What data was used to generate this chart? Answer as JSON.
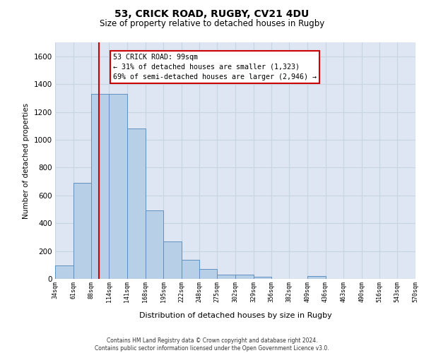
{
  "title_line1": "53, CRICK ROAD, RUGBY, CV21 4DU",
  "title_line2": "Size of property relative to detached houses in Rugby",
  "xlabel": "Distribution of detached houses by size in Rugby",
  "ylabel": "Number of detached properties",
  "annotation_line1": "53 CRICK ROAD: 99sqm",
  "annotation_line2": "← 31% of detached houses are smaller (1,323)",
  "annotation_line3": "69% of semi-detached houses are larger (2,946) →",
  "footer": "Contains HM Land Registry data © Crown copyright and database right 2024.\nContains public sector information licensed under the Open Government Licence v3.0.",
  "bar_color": "#b8cfe8",
  "bar_edge_color": "#6090c0",
  "property_line_color": "#cc0000",
  "property_line_x": 99,
  "bins": [
    34,
    61,
    88,
    114,
    141,
    168,
    195,
    222,
    248,
    275,
    302,
    329,
    356,
    382,
    409,
    436,
    463,
    490,
    516,
    543,
    570
  ],
  "bin_labels": [
    "34sqm",
    "61sqm",
    "88sqm",
    "114sqm",
    "141sqm",
    "168sqm",
    "195sqm",
    "222sqm",
    "248sqm",
    "275sqm",
    "302sqm",
    "329sqm",
    "356sqm",
    "382sqm",
    "409sqm",
    "436sqm",
    "463sqm",
    "490sqm",
    "516sqm",
    "543sqm",
    "570sqm"
  ],
  "counts": [
    95,
    690,
    1330,
    1330,
    1080,
    490,
    270,
    135,
    70,
    30,
    30,
    15,
    0,
    0,
    20,
    0,
    0,
    0,
    0,
    0
  ],
  "ylim": [
    0,
    1700
  ],
  "yticks": [
    0,
    200,
    400,
    600,
    800,
    1000,
    1200,
    1400,
    1600
  ],
  "annotation_box_facecolor": "#ffffff",
  "annotation_box_edgecolor": "#cc0000",
  "grid_color": "#c8d4e4",
  "background_color": "#dde6f2",
  "fig_width": 6.0,
  "fig_height": 5.0,
  "dpi": 100
}
